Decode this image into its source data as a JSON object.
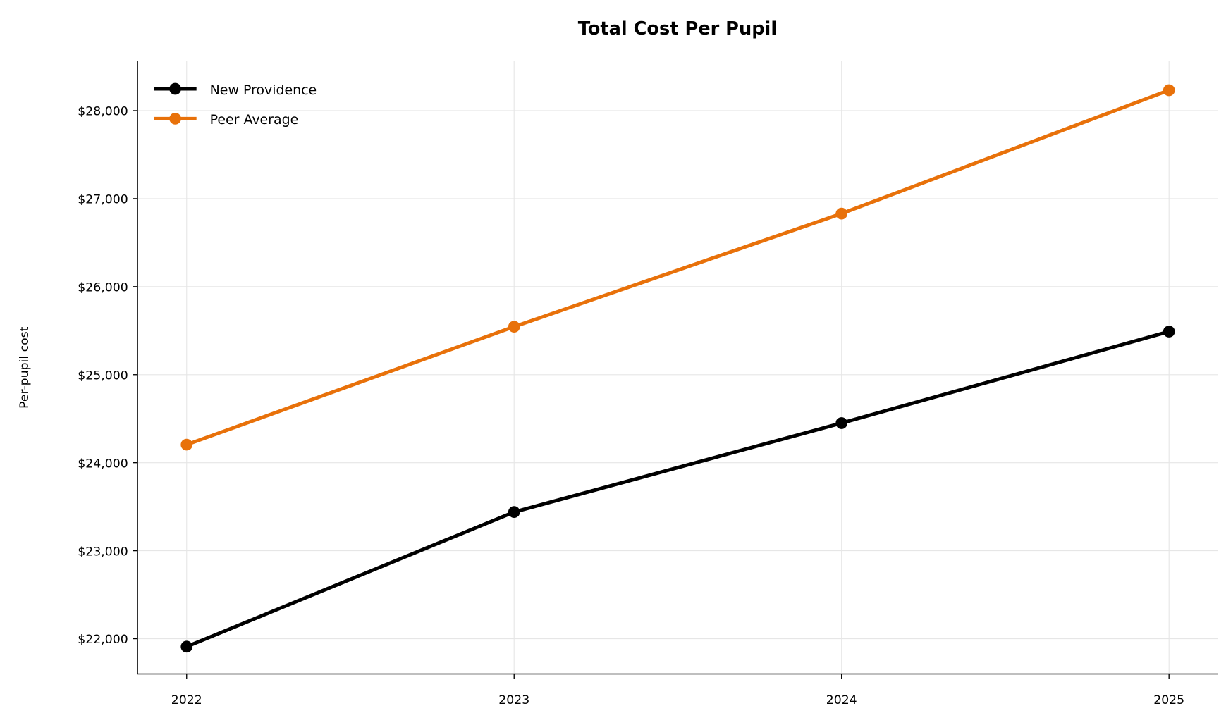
{
  "chart_data": {
    "type": "line",
    "title": "Total Cost Per Pupil",
    "xlabel": "",
    "ylabel": "Per-pupil cost",
    "x": [
      2022,
      2023,
      2024,
      2025
    ],
    "x_tick_labels": [
      "2022",
      "2023",
      "2024",
      "2025"
    ],
    "xlim": [
      2021.85,
      2025.15
    ],
    "ylim": [
      21600,
      28560
    ],
    "y_ticks": [
      22000,
      23000,
      24000,
      25000,
      26000,
      27000,
      28000
    ],
    "y_tick_labels": [
      "$22,000",
      "$23,000",
      "$24,000",
      "$25,000",
      "$26,000",
      "$27,000",
      "$28,000"
    ],
    "grid": true,
    "legend_position": "top-left",
    "series": [
      {
        "name": "New Providence",
        "color": "#000000",
        "values": [
          21910,
          23440,
          24450,
          25490
        ]
      },
      {
        "name": "Peer Average",
        "color": "#e8710a",
        "values": [
          24205,
          25545,
          26830,
          28232
        ]
      }
    ]
  }
}
